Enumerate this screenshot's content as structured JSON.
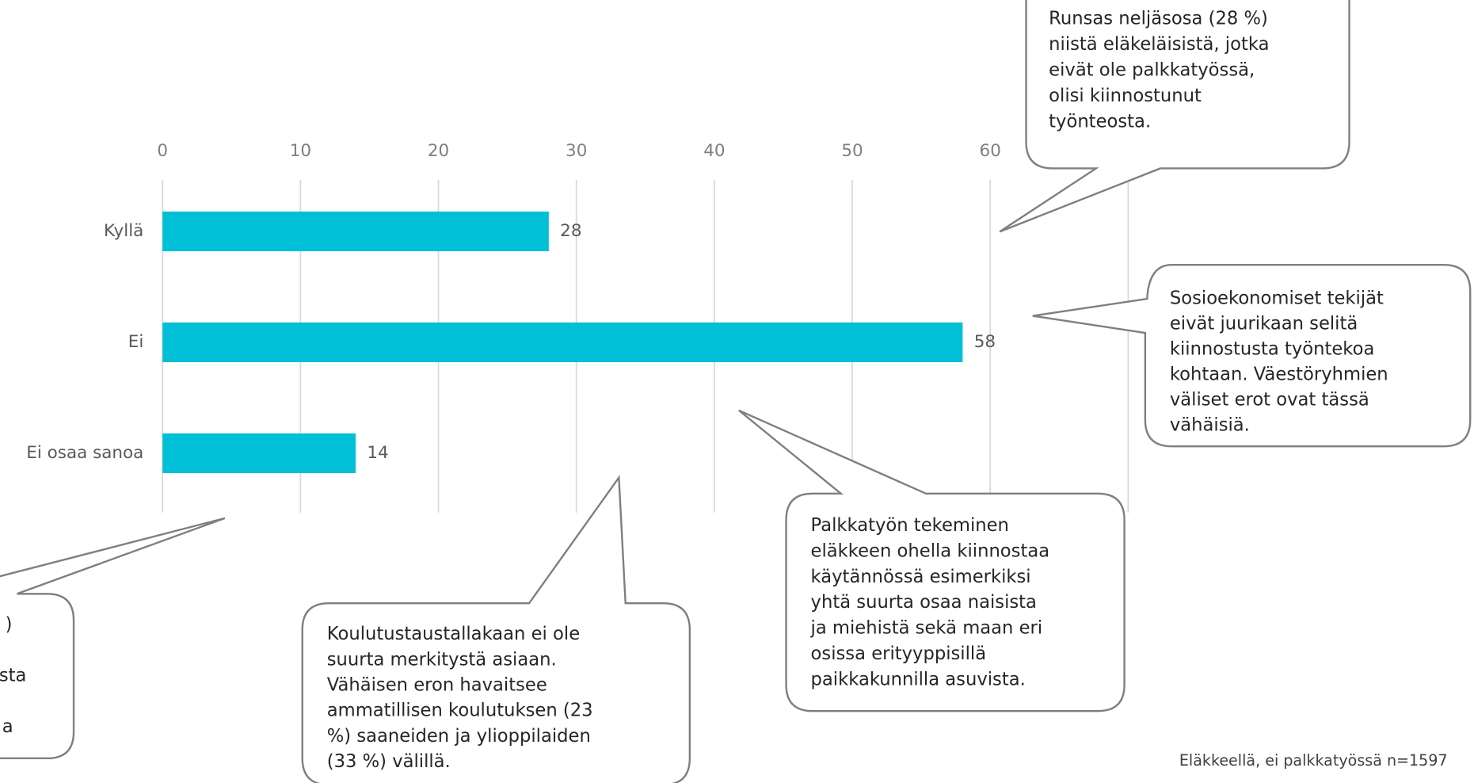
{
  "chart_data": {
    "type": "barh",
    "categories": [
      "Kyllä",
      "Ei",
      "Ei osaa sanoa"
    ],
    "values": [
      28,
      58,
      14
    ],
    "color": "#00bfd6",
    "xlim": [
      0,
      70
    ],
    "xticks": [
      0,
      10,
      20,
      30,
      40,
      50,
      60
    ],
    "grid": true,
    "footnote": "Eläkkeellä, ei palkkatyössä n=1597",
    "annotations": [
      {
        "lines": [
          "Runsas neljäsosa (28 %)",
          "niistä eläkeläisistä, jotka",
          "eivät ole palkkatyössä,",
          "olisi kiinnostunut",
          "työnteosta."
        ]
      },
      {
        "lines": [
          "Sosioekonomiset tekijät",
          "eivät juurikaan selitä",
          "kiinnostusta työntekoa",
          "kohtaan. Väestöryhmien",
          "väliset erot ovat tässä",
          "vähäisiä."
        ]
      },
      {
        "lines": [
          "Palkkatyön tekeminen",
          "eläkkeen ohella kiinnostaa",
          "käytännössä esimerkiksi",
          "yhtä suurta osaa naisista",
          "ja miehistä sekä maan eri",
          "osissa erityyppisillä",
          "paikkakunnilla asuvista."
        ]
      },
      {
        "lines": [
          "Koulutustaustallakaan ei ole",
          "suurta merkitystä asiaan.",
          "Vähäisen eron havaitsee",
          "ammatillisen koulutuksen (23",
          "%) saaneiden ja ylioppilaiden",
          "(33 %) välillä."
        ]
      },
      {
        "lines": [
          ")",
          "sta",
          "a"
        ]
      }
    ]
  }
}
